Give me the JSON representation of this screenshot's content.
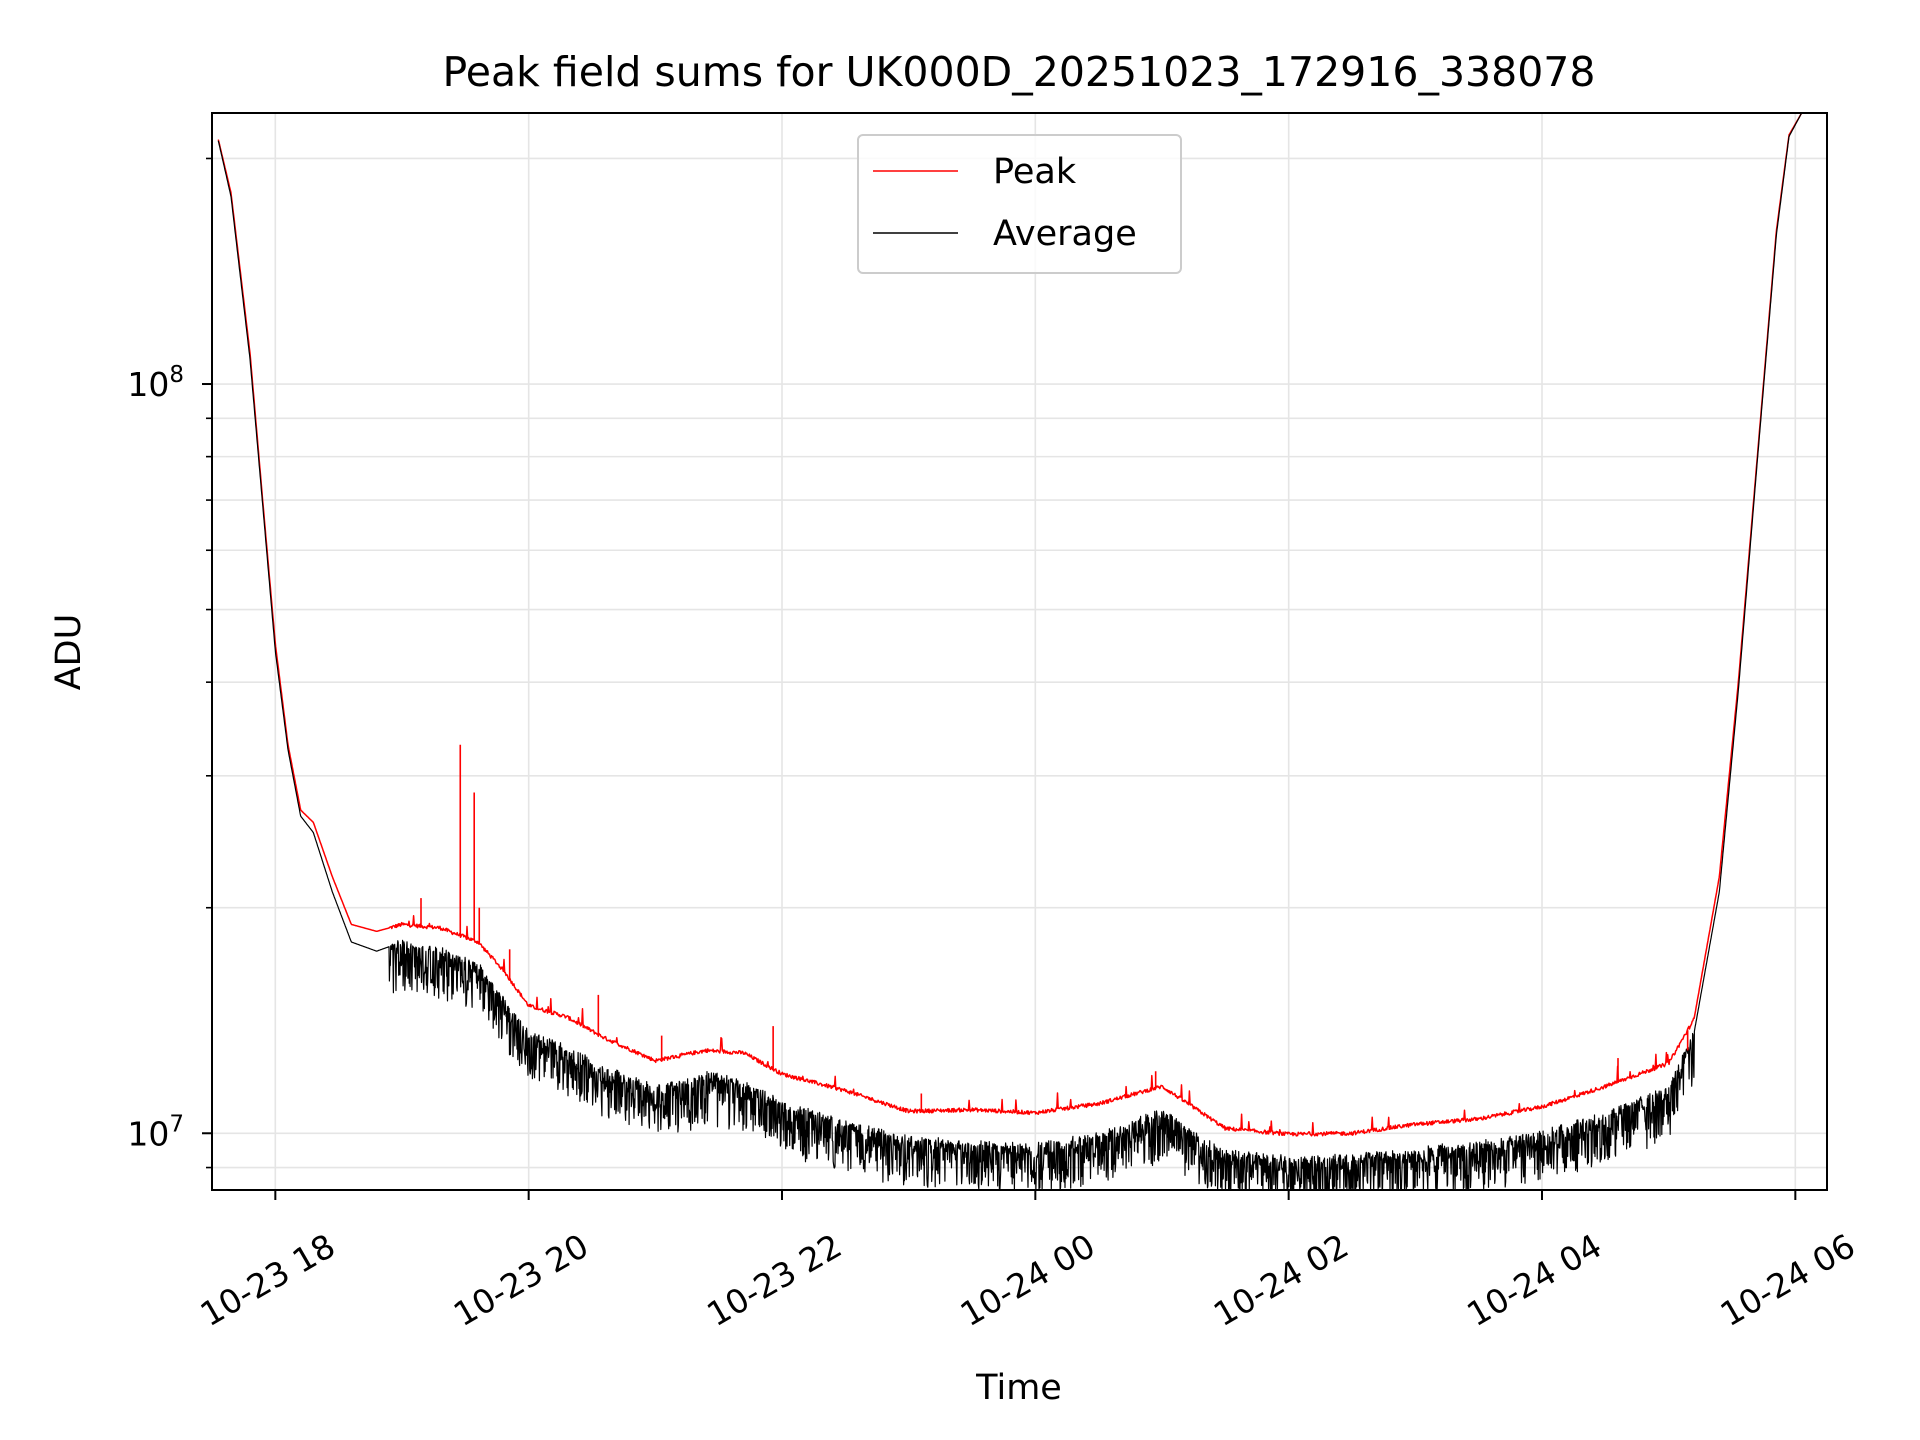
{
  "chart_data": {
    "type": "line",
    "title": "Peak field sums for UK000D_20251023_172916_338078",
    "xlabel": "Time",
    "ylabel": "ADU",
    "yscale": "log",
    "ylim": [
      8400000,
      230000000
    ],
    "xlim_hours": [
      -0.5,
      12.25
    ],
    "grid": true,
    "legend_position": "upper-center",
    "x_tick_hours": [
      0,
      2,
      4,
      6,
      8,
      10,
      12
    ],
    "x_tick_labels": [
      "10-23 18",
      "10-23 20",
      "10-23 22",
      "10-24 00",
      "10-24 02",
      "10-24 04",
      "10-24 06"
    ],
    "y_major_ticks": [
      10000000,
      100000000
    ],
    "y_major_labels": [
      {
        "base": "10",
        "exp": "7"
      },
      {
        "base": "10",
        "exp": "8"
      }
    ],
    "y_minor_ticks": [
      9000000,
      20000000,
      30000000,
      40000000,
      50000000,
      60000000,
      70000000,
      80000000,
      90000000,
      200000000
    ],
    "series": [
      {
        "name": "Peak",
        "color": "#ff0000",
        "x_hours": [
          -0.5,
          -0.35,
          -0.2,
          -0.1,
          0.0,
          0.1,
          0.2,
          0.3,
          0.45,
          0.6,
          0.8,
          1.0,
          1.3,
          1.6,
          1.8,
          2.0,
          2.3,
          2.6,
          3.0,
          3.4,
          3.7,
          4.0,
          4.5,
          5.0,
          5.5,
          6.0,
          6.5,
          7.0,
          7.5,
          8.0,
          8.5,
          9.0,
          9.5,
          10.0,
          10.5,
          11.0,
          11.2,
          11.4,
          11.55,
          11.7,
          11.85,
          11.95,
          12.05
        ],
        "values": [
          230000000,
          180000000,
          110000000,
          70000000,
          45000000,
          33000000,
          27000000,
          26000000,
          22000000,
          19000000,
          18600000,
          19000000,
          18800000,
          18000000,
          16500000,
          14800000,
          14300000,
          13400000,
          12500000,
          12900000,
          12800000,
          12000000,
          11400000,
          10700000,
          10750000,
          10650000,
          10950000,
          11550000,
          10150000,
          9970000,
          10000000,
          10280000,
          10450000,
          10850000,
          11550000,
          12400000,
          14200000,
          22000000,
          40000000,
          80000000,
          160000000,
          215000000,
          230000000
        ]
      },
      {
        "name": "Average",
        "color": "#000000",
        "x_hours": [
          -0.5,
          -0.35,
          -0.2,
          -0.1,
          0.0,
          0.1,
          0.2,
          0.3,
          0.45,
          0.6,
          0.8,
          1.0,
          1.3,
          1.6,
          1.8,
          2.0,
          2.3,
          2.6,
          3.0,
          3.4,
          3.7,
          4.0,
          4.5,
          5.0,
          5.5,
          6.0,
          6.5,
          7.0,
          7.5,
          8.0,
          8.5,
          9.0,
          9.5,
          10.0,
          10.5,
          11.0,
          11.2,
          11.4,
          11.55,
          11.7,
          11.85,
          11.95,
          12.05
        ],
        "values": [
          230000000,
          178000000,
          108000000,
          69000000,
          44000000,
          32500000,
          26500000,
          25200000,
          21000000,
          18000000,
          17500000,
          18000000,
          17600000,
          16800000,
          15200000,
          13600000,
          13000000,
          12200000,
          11500000,
          12000000,
          11700000,
          11000000,
          10300000,
          9850000,
          9700000,
          9650000,
          9950000,
          10700000,
          9450000,
          9250000,
          9300000,
          9500000,
          9700000,
          10000000,
          10600000,
          11500000,
          13600000,
          21000000,
          39000000,
          79000000,
          158000000,
          214000000,
          230000000
        ]
      }
    ],
    "peak_spikes": [
      {
        "x_hours": 1.15,
        "value": 20600000
      },
      {
        "x_hours": 1.46,
        "value": 33000000
      },
      {
        "x_hours": 1.57,
        "value": 28500000
      },
      {
        "x_hours": 1.61,
        "value": 20000000
      },
      {
        "x_hours": 1.85,
        "value": 17600000
      },
      {
        "x_hours": 2.55,
        "value": 15300000
      },
      {
        "x_hours": 3.05,
        "value": 13500000
      },
      {
        "x_hours": 3.93,
        "value": 13900000
      },
      {
        "x_hours": 5.1,
        "value": 11300000
      },
      {
        "x_hours": 6.95,
        "value": 12100000
      },
      {
        "x_hours": 10.6,
        "value": 12600000
      },
      {
        "x_hours": 11.15,
        "value": 12900000
      }
    ]
  }
}
